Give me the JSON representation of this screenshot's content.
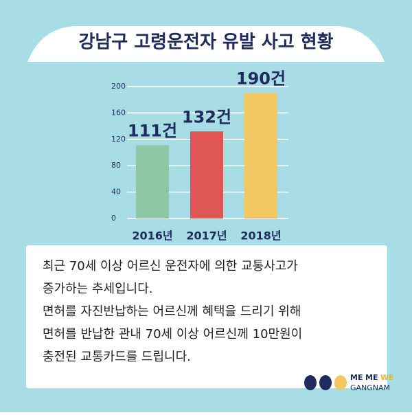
{
  "chart_data": {
    "type": "bar",
    "title": "강남구 고령운전자 유발 사고 현황",
    "categories": [
      "2016년",
      "2017년",
      "2018년"
    ],
    "values": [
      111,
      132,
      190
    ],
    "value_labels": [
      "111건",
      "132건",
      "190건"
    ],
    "colors": [
      "#8ec6a6",
      "#e05556",
      "#f3c862"
    ],
    "ylim": [
      0,
      200
    ],
    "yticks": [
      0,
      40,
      80,
      120,
      160,
      200
    ],
    "grid": true,
    "annotations": [
      "최근 70세 이상 어르신 운전자에 의한 교통사고가",
      "증가하는 추세입니다.",
      "면허를 자진반납하는 어르신께 혜택을 드리기 위해",
      "면허를 반납한 관내 70세 이상 어르신께 10만원이",
      "충전된 교통카드를 드립니다."
    ],
    "logo": [
      "ME",
      "ME",
      "WE",
      "GANGNAM"
    ]
  }
}
